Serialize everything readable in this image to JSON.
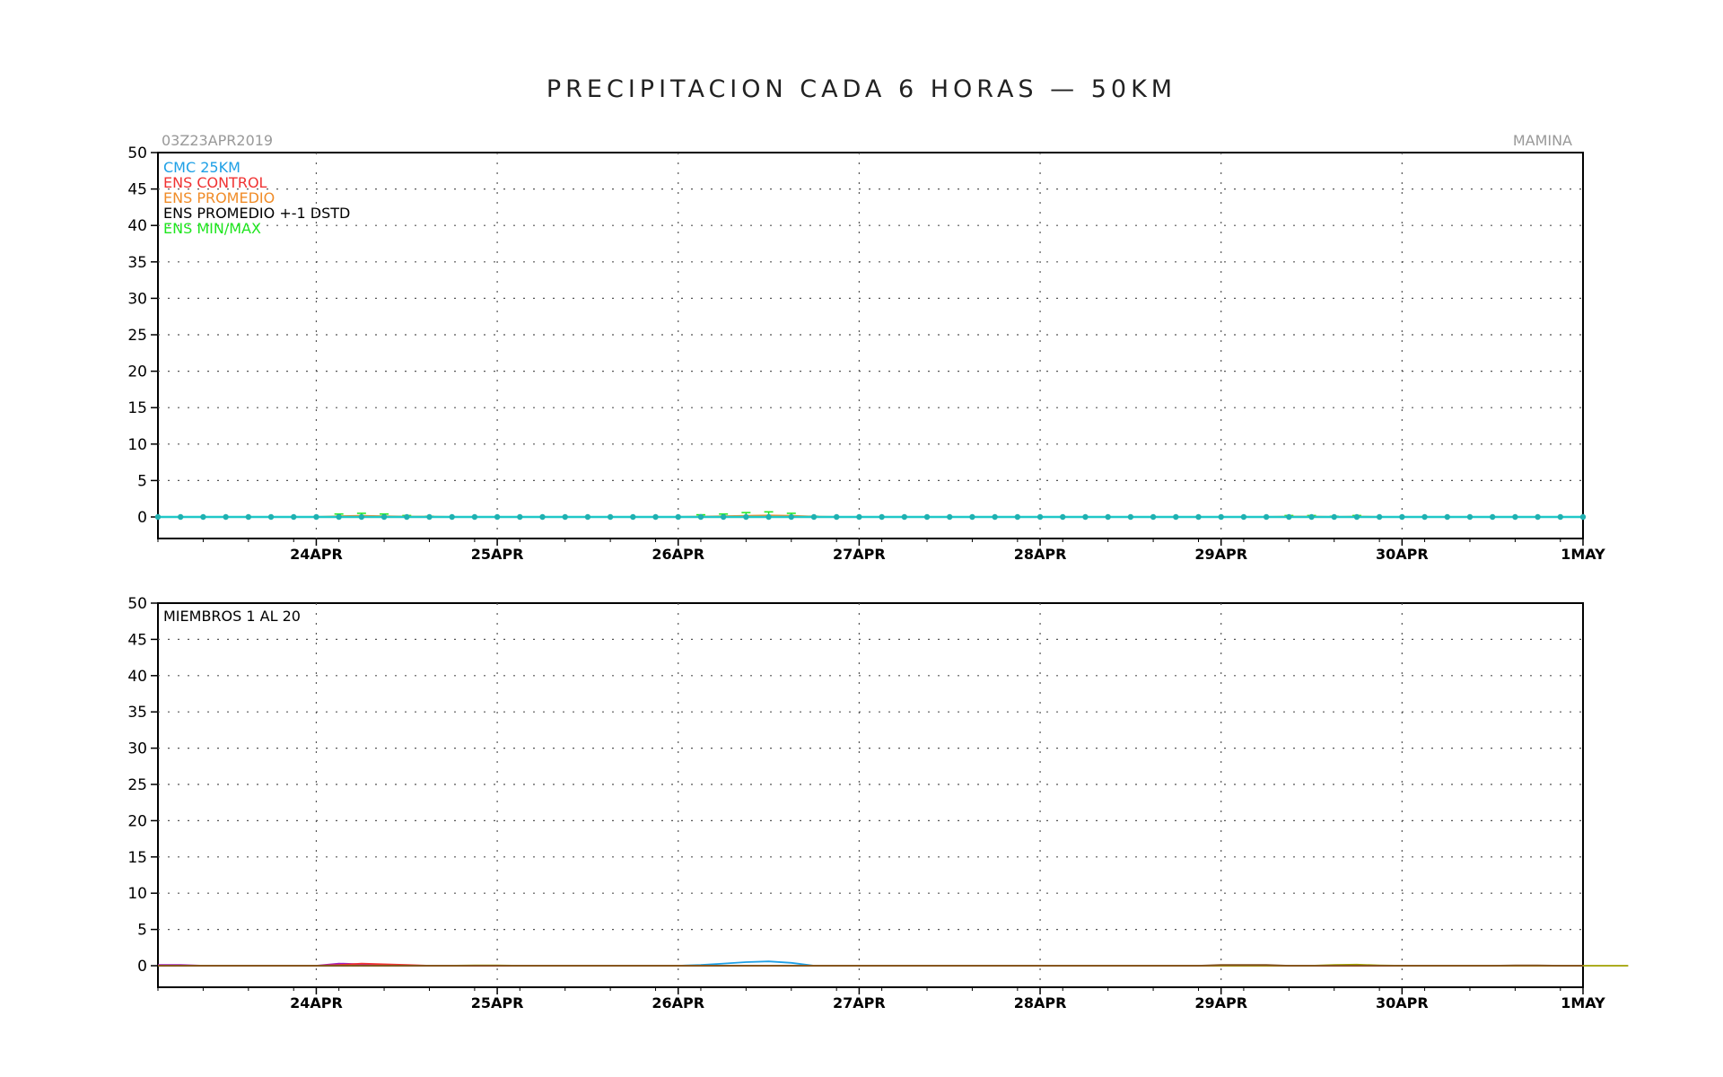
{
  "page_title": "PRECIPITACION CADA 6 HORAS — 50KM",
  "init_label": "03Z23APR2019",
  "station_label": "MAMINA",
  "colors": {
    "cmc": "#1ea0e6",
    "control": "#f03232",
    "promedio": "#f08c28",
    "std": "#000000",
    "minmax": "#1ee61e",
    "members": [
      "#1ea0e6",
      "#a020c0",
      "#f03232",
      "#f08c28",
      "#a0a000",
      "#1ee61e",
      "#00a0a0",
      "#805020"
    ]
  },
  "legend": [
    {
      "text": "CMC 25KM",
      "color": "#1ea0e6"
    },
    {
      "text": "ENS CONTROL",
      "color": "#f03232"
    },
    {
      "text": "ENS PROMEDIO",
      "color": "#f08c28"
    },
    {
      "text": "ENS PROMEDIO +-1 DSTD",
      "color": "#000000"
    },
    {
      "text": "ENS MIN/MAX",
      "color": "#1ee61e"
    }
  ],
  "chart_data": [
    {
      "type": "line",
      "title": "PRECIPITACION CADA 6 HORAS — 50KM",
      "ylim": [
        0,
        50
      ],
      "yticks": [
        0,
        5,
        10,
        15,
        20,
        25,
        30,
        35,
        40,
        45,
        50
      ],
      "x_labels": [
        "24APR",
        "25APR",
        "26APR",
        "27APR",
        "28APR",
        "29APR",
        "30APR",
        "1MAY"
      ],
      "grid": true,
      "legend_position": "top-left",
      "x_step_hours": 3,
      "series": [
        {
          "name": "CMC 25KM",
          "values": [
            0,
            0,
            0,
            0,
            0,
            0,
            0,
            0,
            0,
            0,
            0,
            0,
            0,
            0,
            0,
            0,
            0,
            0,
            0,
            0,
            0,
            0,
            0,
            0,
            0,
            0,
            0,
            0,
            0,
            0,
            0,
            0,
            0,
            0,
            0,
            0,
            0,
            0,
            0,
            0,
            0,
            0,
            0,
            0,
            0,
            0,
            0,
            0,
            0,
            0,
            0,
            0,
            0,
            0,
            0,
            0,
            0,
            0,
            0,
            0,
            0,
            0,
            0,
            0
          ]
        },
        {
          "name": "ENS PROMEDIO",
          "values": [
            0,
            0,
            0,
            0,
            0,
            0,
            0,
            0,
            0.1,
            0.15,
            0.1,
            0.05,
            0.05,
            0,
            0,
            0,
            0,
            0,
            0,
            0,
            0,
            0,
            0,
            0,
            0.05,
            0.1,
            0.15,
            0.2,
            0.15,
            0.05,
            0,
            0,
            0,
            0,
            0,
            0,
            0,
            0,
            0,
            0,
            0,
            0,
            0,
            0,
            0,
            0,
            0,
            0,
            0,
            0,
            0.05,
            0.05,
            0,
            0.05,
            0,
            0,
            0,
            0,
            0,
            0,
            0,
            0,
            0,
            0
          ]
        },
        {
          "name": "ENS MIN/MAX",
          "max": [
            0,
            0,
            0,
            0,
            0,
            0,
            0,
            0,
            0.4,
            0.5,
            0.4,
            0.2,
            0.1,
            0,
            0,
            0,
            0,
            0,
            0,
            0,
            0,
            0,
            0,
            0,
            0.3,
            0.4,
            0.6,
            0.7,
            0.5,
            0.1,
            0,
            0,
            0,
            0,
            0,
            0,
            0,
            0,
            0,
            0,
            0,
            0,
            0,
            0,
            0,
            0,
            0,
            0,
            0,
            0,
            0.2,
            0.2,
            0.1,
            0.2,
            0,
            0,
            0,
            0,
            0,
            0,
            0,
            0,
            0,
            0
          ]
        }
      ]
    },
    {
      "type": "line",
      "panel_label": "MIEMBROS 1 AL 20",
      "ylim": [
        0,
        50
      ],
      "yticks": [
        0,
        5,
        10,
        15,
        20,
        25,
        30,
        35,
        40,
        45,
        50
      ],
      "x_labels": [
        "24APR",
        "25APR",
        "26APR",
        "27APR",
        "28APR",
        "29APR",
        "30APR",
        "1MAY"
      ],
      "grid": true,
      "x_step_hours": 3,
      "members": [
        {
          "color_index": 0,
          "values": [
            0,
            0,
            0,
            0,
            0,
            0,
            0,
            0,
            0,
            0,
            0,
            0,
            0,
            0,
            0,
            0,
            0,
            0,
            0,
            0,
            0,
            0,
            0,
            0,
            0.1,
            0.3,
            0.5,
            0.6,
            0.4,
            0,
            0,
            0,
            0,
            0,
            0,
            0,
            0,
            0,
            0,
            0,
            0,
            0,
            0,
            0,
            0,
            0,
            0,
            0,
            0,
            0,
            0,
            0,
            0,
            0,
            0,
            0,
            0,
            0,
            0,
            0,
            0,
            0,
            0,
            0
          ]
        },
        {
          "color_index": 1,
          "values": [
            0.1,
            0.1,
            0,
            0,
            0,
            0,
            0,
            0,
            0.3,
            0.2,
            0.1,
            0,
            0,
            0,
            0,
            0,
            0,
            0,
            0,
            0,
            0,
            0,
            0,
            0,
            0,
            0,
            0,
            0,
            0,
            0,
            0,
            0,
            0,
            0,
            0,
            0,
            0,
            0,
            0,
            0,
            0,
            0,
            0,
            0,
            0,
            0,
            0,
            0,
            0,
            0,
            0,
            0,
            0,
            0,
            0,
            0,
            0,
            0,
            0,
            0,
            0,
            0,
            0,
            0
          ]
        },
        {
          "color_index": 2,
          "values": [
            0,
            0,
            0,
            0,
            0,
            0,
            0,
            0,
            0.1,
            0.3,
            0.2,
            0.1,
            0,
            0,
            0,
            0,
            0,
            0,
            0,
            0,
            0,
            0,
            0,
            0,
            0,
            0,
            0,
            0,
            0,
            0,
            0,
            0,
            0,
            0,
            0,
            0,
            0,
            0,
            0,
            0,
            0,
            0,
            0,
            0,
            0,
            0,
            0,
            0,
            0,
            0,
            0,
            0,
            0,
            0,
            0,
            0,
            0,
            0,
            0,
            0,
            0,
            0,
            0,
            0
          ]
        },
        {
          "color_index": 4,
          "values": [
            0,
            0,
            0,
            0,
            0,
            0,
            0,
            0,
            0,
            0,
            0,
            0,
            0,
            0,
            0.05,
            0.05,
            0,
            0,
            0,
            0,
            0,
            0,
            0,
            0,
            0,
            0,
            0,
            0,
            0,
            0,
            0,
            0,
            0,
            0,
            0,
            0,
            0,
            0,
            0,
            0,
            0,
            0,
            0,
            0,
            0,
            0,
            0,
            0,
            0,
            0,
            0,
            0,
            0.1,
            0.15,
            0.05,
            0,
            0,
            0,
            0,
            0,
            0,
            0,
            0,
            0,
            0,
            0
          ]
        },
        {
          "color_index": 7,
          "values": [
            0,
            0,
            0,
            0,
            0,
            0,
            0,
            0,
            0,
            0,
            0,
            0,
            0,
            0,
            0,
            0,
            0,
            0,
            0,
            0,
            0,
            0,
            0,
            0,
            0,
            0,
            0,
            0,
            0,
            0,
            0,
            0,
            0,
            0,
            0,
            0,
            0,
            0,
            0,
            0,
            0,
            0,
            0,
            0,
            0,
            0,
            0,
            0.1,
            0.1,
            0.1,
            0,
            0,
            0,
            0,
            0,
            0,
            0,
            0,
            0,
            0,
            0.05,
            0.05,
            0,
            0
          ]
        }
      ]
    }
  ]
}
